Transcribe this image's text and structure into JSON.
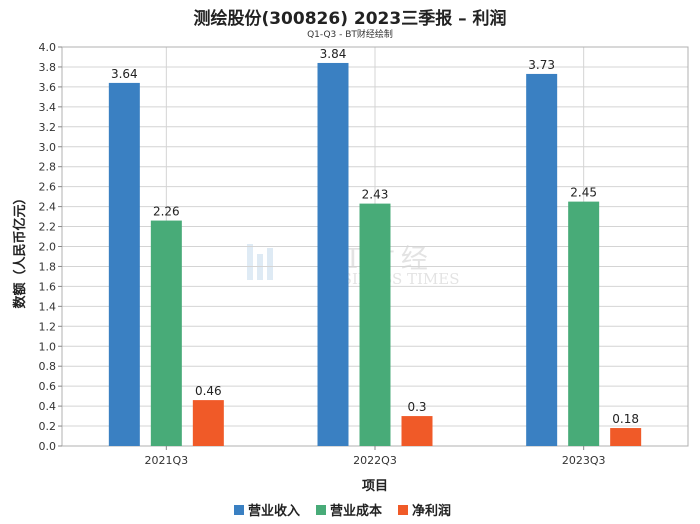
{
  "chart_data": {
    "type": "bar",
    "title": "测绘股份(300826) 2023三季报 – 利润",
    "subtitle": "Q1-Q3 - BT财经绘制",
    "xlabel": "项目",
    "ylabel": "数额（人民币亿元）",
    "categories": [
      "2021Q3",
      "2022Q3",
      "2023Q3"
    ],
    "ylim": [
      0,
      4.0
    ],
    "ytick_step": 0.2,
    "series": [
      {
        "name": "营业收入",
        "color": "#3a80c2",
        "values": [
          3.64,
          3.84,
          3.73
        ],
        "labels": [
          "3.64",
          "3.84",
          "3.73"
        ]
      },
      {
        "name": "营业成本",
        "color": "#48ab78",
        "values": [
          2.26,
          2.43,
          2.45
        ],
        "labels": [
          "2.26",
          "2.43",
          "2.45"
        ]
      },
      {
        "name": "净利润",
        "color": "#f05a28",
        "values": [
          0.46,
          0.3,
          0.18
        ],
        "labels": [
          "0.46",
          "0.3",
          "0.18"
        ]
      }
    ],
    "legend_position": "bottom",
    "grid": true
  },
  "watermark": {
    "main": "BT财经",
    "sub": "BUSINESS TIMES"
  }
}
